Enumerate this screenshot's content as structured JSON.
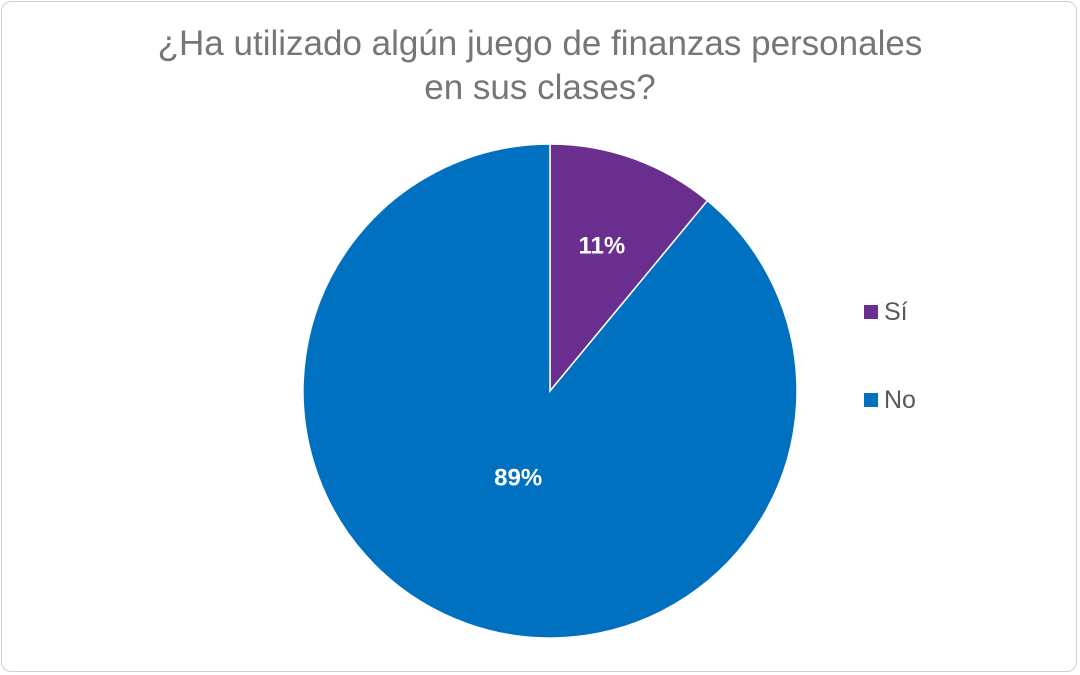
{
  "chart_data": {
    "type": "pie",
    "title_lines": [
      "¿Ha utilizado algún juego de finanzas personales",
      "en sus clases?"
    ],
    "slices": [
      {
        "name": "Sí",
        "value": 11,
        "label": "11%",
        "color": "#6a2e8e"
      },
      {
        "name": "No",
        "value": 89,
        "label": "89%",
        "color": "#0070c0"
      }
    ],
    "legend_placement": "right"
  }
}
